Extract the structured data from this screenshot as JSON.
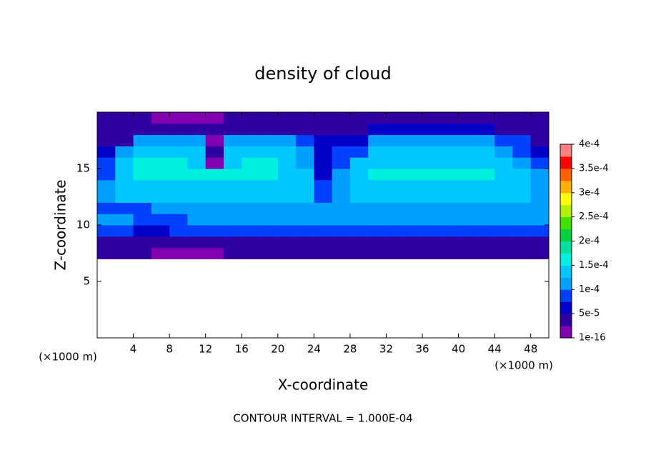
{
  "chart_data": {
    "type": "contour",
    "title": "density of cloud",
    "xlabel": "X-coordinate",
    "ylabel": "Z-coordinate",
    "x_unit": "(×1000 m)",
    "footnote": "CONTOUR INTERVAL = 1.000E-04",
    "xlim": [
      0,
      50
    ],
    "ylim": [
      0,
      20
    ],
    "xticks": [
      4,
      8,
      12,
      16,
      20,
      24,
      28,
      32,
      36,
      40,
      44,
      48
    ],
    "yticks": [
      5,
      10,
      15
    ],
    "x": [
      1,
      3,
      5,
      7,
      9,
      11,
      13,
      15,
      17,
      19,
      21,
      23,
      25,
      27,
      29,
      31,
      33,
      35,
      37,
      39,
      41,
      43,
      45,
      47,
      49
    ],
    "y": [
      7.5,
      8.5,
      9.5,
      10.5,
      11.5,
      12.5,
      13.5,
      14.5,
      15.5,
      16.5,
      17.5,
      18.5,
      19.5
    ],
    "z": [
      [
        3e-05,
        3e-05,
        3e-05,
        2e-05,
        1e-05,
        1e-05,
        2e-05,
        3e-05,
        3e-05,
        3e-05,
        3e-05,
        3e-05,
        3e-05,
        3e-05,
        3e-05,
        3e-05,
        3e-05,
        3e-05,
        3e-05,
        3e-05,
        3e-05,
        3e-05,
        3e-05,
        3e-05,
        3e-05
      ],
      [
        5e-05,
        5e-05,
        3e-05,
        3e-05,
        3e-05,
        5e-05,
        5e-05,
        5e-05,
        5e-05,
        5e-05,
        5e-05,
        5e-05,
        5e-05,
        5e-05,
        5e-05,
        5e-05,
        5e-05,
        5e-05,
        5e-05,
        5e-05,
        5e-05,
        5e-05,
        5e-05,
        5e-05,
        5e-05
      ],
      [
        8e-05,
        8e-05,
        6e-05,
        6e-05,
        8e-05,
        8e-05,
        8e-05,
        8e-05,
        8e-05,
        8e-05,
        8e-05,
        8e-05,
        8e-05,
        8e-05,
        8e-05,
        8e-05,
        8e-05,
        8e-05,
        8e-05,
        8e-05,
        8e-05,
        8e-05,
        8e-05,
        8e-05,
        8e-05
      ],
      [
        0.000105,
        0.000105,
        8e-05,
        8e-05,
        8e-05,
        0.000105,
        0.000105,
        0.000105,
        0.000105,
        0.000105,
        0.000105,
        0.000105,
        0.000105,
        0.000105,
        0.000105,
        0.000105,
        0.000105,
        0.000105,
        0.000105,
        0.000105,
        0.000105,
        0.000105,
        0.000105,
        0.000105,
        0.000105
      ],
      [
        9e-05,
        9e-05,
        9e-05,
        0.00012,
        0.00012,
        0.00012,
        0.00012,
        0.00012,
        0.00012,
        0.00012,
        0.00012,
        0.00012,
        0.00011,
        0.00011,
        0.00012,
        0.00012,
        0.00012,
        0.00012,
        0.00012,
        0.00012,
        0.00012,
        0.00012,
        0.00012,
        0.00012,
        0.00012
      ],
      [
        0.00011,
        0.00013,
        0.00013,
        0.00014,
        0.00014,
        0.00014,
        0.00014,
        0.00014,
        0.00014,
        0.00014,
        0.00014,
        0.00013,
        0.0001,
        0.00011,
        0.00013,
        0.00014,
        0.00014,
        0.00014,
        0.00014,
        0.00014,
        0.00014,
        0.00014,
        0.00014,
        0.00013,
        0.00012
      ],
      [
        0.00011,
        0.00015,
        0.00015,
        0.00015,
        0.00015,
        0.00015,
        0.00015,
        0.00015,
        0.00015,
        0.00015,
        0.00015,
        0.00014,
        8e-05,
        0.00012,
        0.00014,
        0.00015,
        0.00015,
        0.00015,
        0.00015,
        0.00015,
        0.00015,
        0.00015,
        0.00015,
        0.00014,
        0.00012
      ],
      [
        0.0001,
        0.00015,
        0.00016,
        0.00016,
        0.00016,
        0.00016,
        0.00016,
        0.00016,
        0.00016,
        0.00016,
        0.00015,
        0.00013,
        7e-05,
        0.00011,
        0.00014,
        0.00016,
        0.00016,
        0.00016,
        0.00016,
        0.00016,
        0.00016,
        0.00016,
        0.00015,
        0.00013,
        0.00011
      ],
      [
        9e-05,
        0.00015,
        0.000155,
        0.000155,
        0.000155,
        0.00015,
        2e-05,
        0.00015,
        0.000155,
        0.000155,
        0.00015,
        0.00012,
        7e-05,
        0.0001,
        0.00013,
        0.00015,
        0.00015,
        0.00015,
        0.00015,
        0.00015,
        0.00015,
        0.00015,
        0.00014,
        0.00012,
        9e-05
      ],
      [
        6e-05,
        0.00011,
        0.00014,
        0.00014,
        0.00014,
        0.00014,
        3e-05,
        0.000135,
        0.000135,
        0.000135,
        0.000135,
        0.00011,
        6e-05,
        8e-05,
        0.0001,
        0.00014,
        0.00014,
        0.00014,
        0.00014,
        0.00014,
        0.00014,
        0.00014,
        0.00012,
        0.0001,
        6e-05
      ],
      [
        5e-05,
        5e-05,
        0.00011,
        0.00011,
        0.00011,
        0.00011,
        2e-05,
        0.00011,
        0.00011,
        0.00011,
        0.00011,
        9e-05,
        6e-05,
        7e-05,
        7e-05,
        0.00011,
        0.00011,
        0.00011,
        0.00011,
        0.00011,
        0.00011,
        0.00011,
        8e-05,
        8e-05,
        5e-05
      ],
      [
        5e-05,
        5e-05,
        5e-05,
        5e-05,
        5e-05,
        3e-05,
        3e-05,
        5e-05,
        5e-05,
        5e-05,
        5e-05,
        5e-05,
        5e-05,
        5e-05,
        5e-05,
        7e-05,
        7e-05,
        7e-05,
        7e-05,
        7e-05,
        7e-05,
        7e-05,
        5e-05,
        5e-05,
        5e-05
      ],
      [
        4e-05,
        4e-05,
        4e-05,
        1e-05,
        1e-05,
        1e-05,
        1e-05,
        4e-05,
        4e-05,
        4e-05,
        4e-05,
        4e-05,
        4e-05,
        4e-05,
        4e-05,
        4e-05,
        4e-05,
        4e-05,
        4e-05,
        4e-05,
        4e-05,
        4e-05,
        4e-05,
        4e-05,
        4e-05
      ]
    ],
    "zlim": [
      1e-16,
      0.0004
    ],
    "zticks": [
      {
        "value": 1e-16,
        "label": "1e-16"
      },
      {
        "value": 5e-05,
        "label": "5e-5"
      },
      {
        "value": 0.0001,
        "label": "1e-4"
      },
      {
        "value": 0.00015,
        "label": "1.5e-4"
      },
      {
        "value": 0.0002,
        "label": "2e-4"
      },
      {
        "value": 0.00025,
        "label": "2.5e-4"
      },
      {
        "value": 0.0003,
        "label": "3e-4"
      },
      {
        "value": 0.00035,
        "label": "3.5e-4"
      },
      {
        "value": 0.0004,
        "label": "4e-4"
      }
    ],
    "colors": [
      "#8000b0",
      "#3000a0",
      "#0000c8",
      "#0040ff",
      "#00a0ff",
      "#00c8ff",
      "#00f0e0",
      "#00e0a0",
      "#00d040",
      "#40e000",
      "#b0f000",
      "#ffff00",
      "#ffb000",
      "#ff6000",
      "#ff0000",
      "#ff8080"
    ]
  }
}
